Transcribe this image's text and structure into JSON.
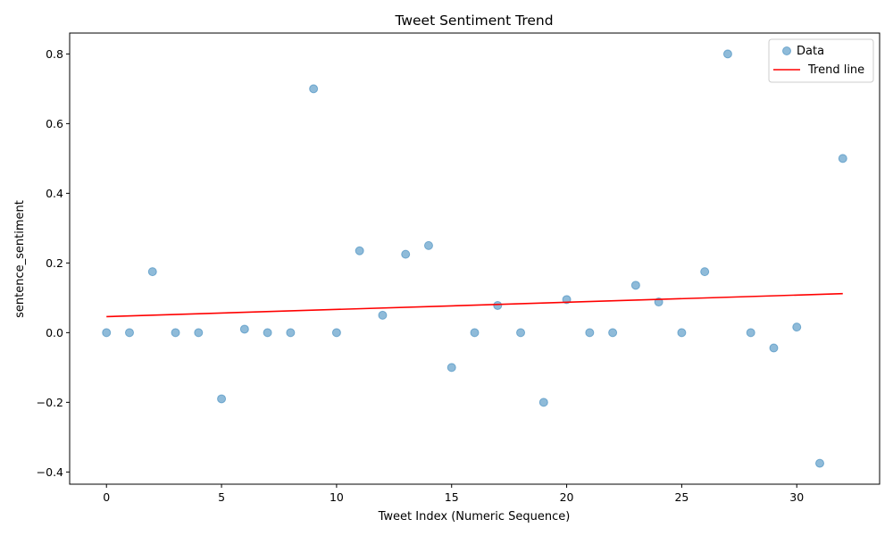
{
  "chart_data": {
    "type": "scatter",
    "title": "Tweet Sentiment Trend",
    "xlabel": "Tweet Index (Numeric Sequence)",
    "ylabel": "sentence_sentiment",
    "xlim": [
      -1.6,
      33.6
    ],
    "ylim": [
      -0.435,
      0.86
    ],
    "xticks": [
      0,
      5,
      10,
      15,
      20,
      25,
      30
    ],
    "yticks": [
      -0.4,
      -0.2,
      0.0,
      0.2,
      0.4,
      0.6,
      0.8
    ],
    "xtick_labels": [
      "0",
      "5",
      "10",
      "15",
      "20",
      "25",
      "30"
    ],
    "ytick_labels": [
      "−0.4",
      "−0.2",
      "0.0",
      "0.2",
      "0.4",
      "0.6",
      "0.8"
    ],
    "grid": false,
    "legend_position": "top-right",
    "series": [
      {
        "name": "Data",
        "kind": "scatter",
        "color": "#1f77b4",
        "x": [
          0,
          1,
          2,
          3,
          4,
          5,
          6,
          7,
          8,
          9,
          10,
          11,
          12,
          13,
          14,
          15,
          16,
          17,
          18,
          19,
          20,
          21,
          22,
          23,
          24,
          25,
          26,
          27,
          28,
          29,
          30,
          31,
          32
        ],
        "y": [
          0.0,
          0.0,
          0.175,
          0.0,
          0.0,
          -0.19,
          0.01,
          0.0,
          0.0,
          0.7,
          0.0,
          0.235,
          0.05,
          0.225,
          0.25,
          -0.1,
          0.0,
          0.078,
          0.0,
          -0.2,
          0.095,
          0.0,
          0.0,
          0.136,
          0.088,
          0.0,
          0.175,
          0.8,
          0.0,
          -0.044,
          0.016,
          -0.375,
          0.5
        ]
      },
      {
        "name": "Trend line",
        "kind": "line",
        "color": "#ff0000",
        "x": [
          0,
          32
        ],
        "y": [
          0.046,
          0.112
        ]
      }
    ]
  }
}
